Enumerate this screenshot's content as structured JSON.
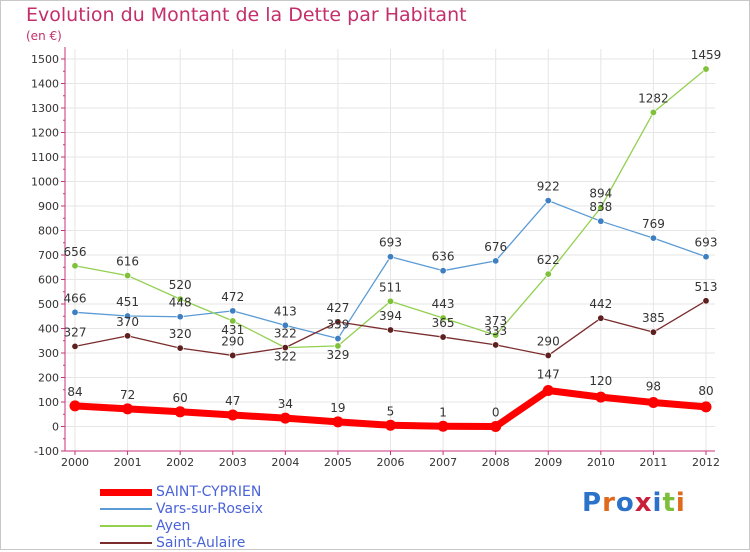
{
  "title": "Evolution du Montant de la Dette par Habitant",
  "subtitle": "(en €)",
  "logo": {
    "text": "Proxiti",
    "colors": [
      "#2a73c9",
      "#e06a1c",
      "#2a73c9",
      "#c71f3c",
      "#2a73c9",
      "#7bbf3a",
      "#e06a1c"
    ]
  },
  "chart_data": {
    "type": "line",
    "x": [
      "2000",
      "2001",
      "2002",
      "2003",
      "2004",
      "2005",
      "2006",
      "2007",
      "2008",
      "2009",
      "2010",
      "2011",
      "2012"
    ],
    "ylim": [
      -100,
      1500
    ],
    "yticks": [
      -100,
      0,
      100,
      200,
      300,
      400,
      500,
      600,
      700,
      800,
      900,
      1000,
      1100,
      1200,
      1300,
      1400,
      1500
    ],
    "grid": true,
    "legend": "bottom-left",
    "series": [
      {
        "name": "Vars-sur-Roseix",
        "color": "#5b9bd5",
        "marker": "#3e7fc1",
        "width": 1.3,
        "values": [
          466,
          451,
          448,
          472,
          413,
          359,
          693,
          636,
          676,
          922,
          838,
          769,
          693
        ]
      },
      {
        "name": "Ayen",
        "color": "#92d050",
        "marker": "#7fc23a",
        "width": 1.3,
        "values": [
          656,
          616,
          520,
          431,
          322,
          329,
          511,
          443,
          373,
          622,
          894,
          1282,
          1459
        ]
      },
      {
        "name": "Saint-Aulaire",
        "color": "#7b2c2c",
        "marker": "#5e1f1f",
        "width": 1.3,
        "values": [
          327,
          370,
          320,
          290,
          322,
          427,
          394,
          365,
          333,
          290,
          442,
          385,
          513
        ]
      },
      {
        "name": "SAINT-CYPRIEN",
        "color": "#ff0000",
        "marker": "#ff0000",
        "width": 7,
        "values": [
          84,
          72,
          60,
          47,
          34,
          19,
          5,
          1,
          0,
          147,
          120,
          98,
          80
        ]
      }
    ],
    "legend_order": [
      "SAINT-CYPRIEN",
      "Vars-sur-Roseix",
      "Ayen",
      "Saint-Aulaire"
    ]
  }
}
